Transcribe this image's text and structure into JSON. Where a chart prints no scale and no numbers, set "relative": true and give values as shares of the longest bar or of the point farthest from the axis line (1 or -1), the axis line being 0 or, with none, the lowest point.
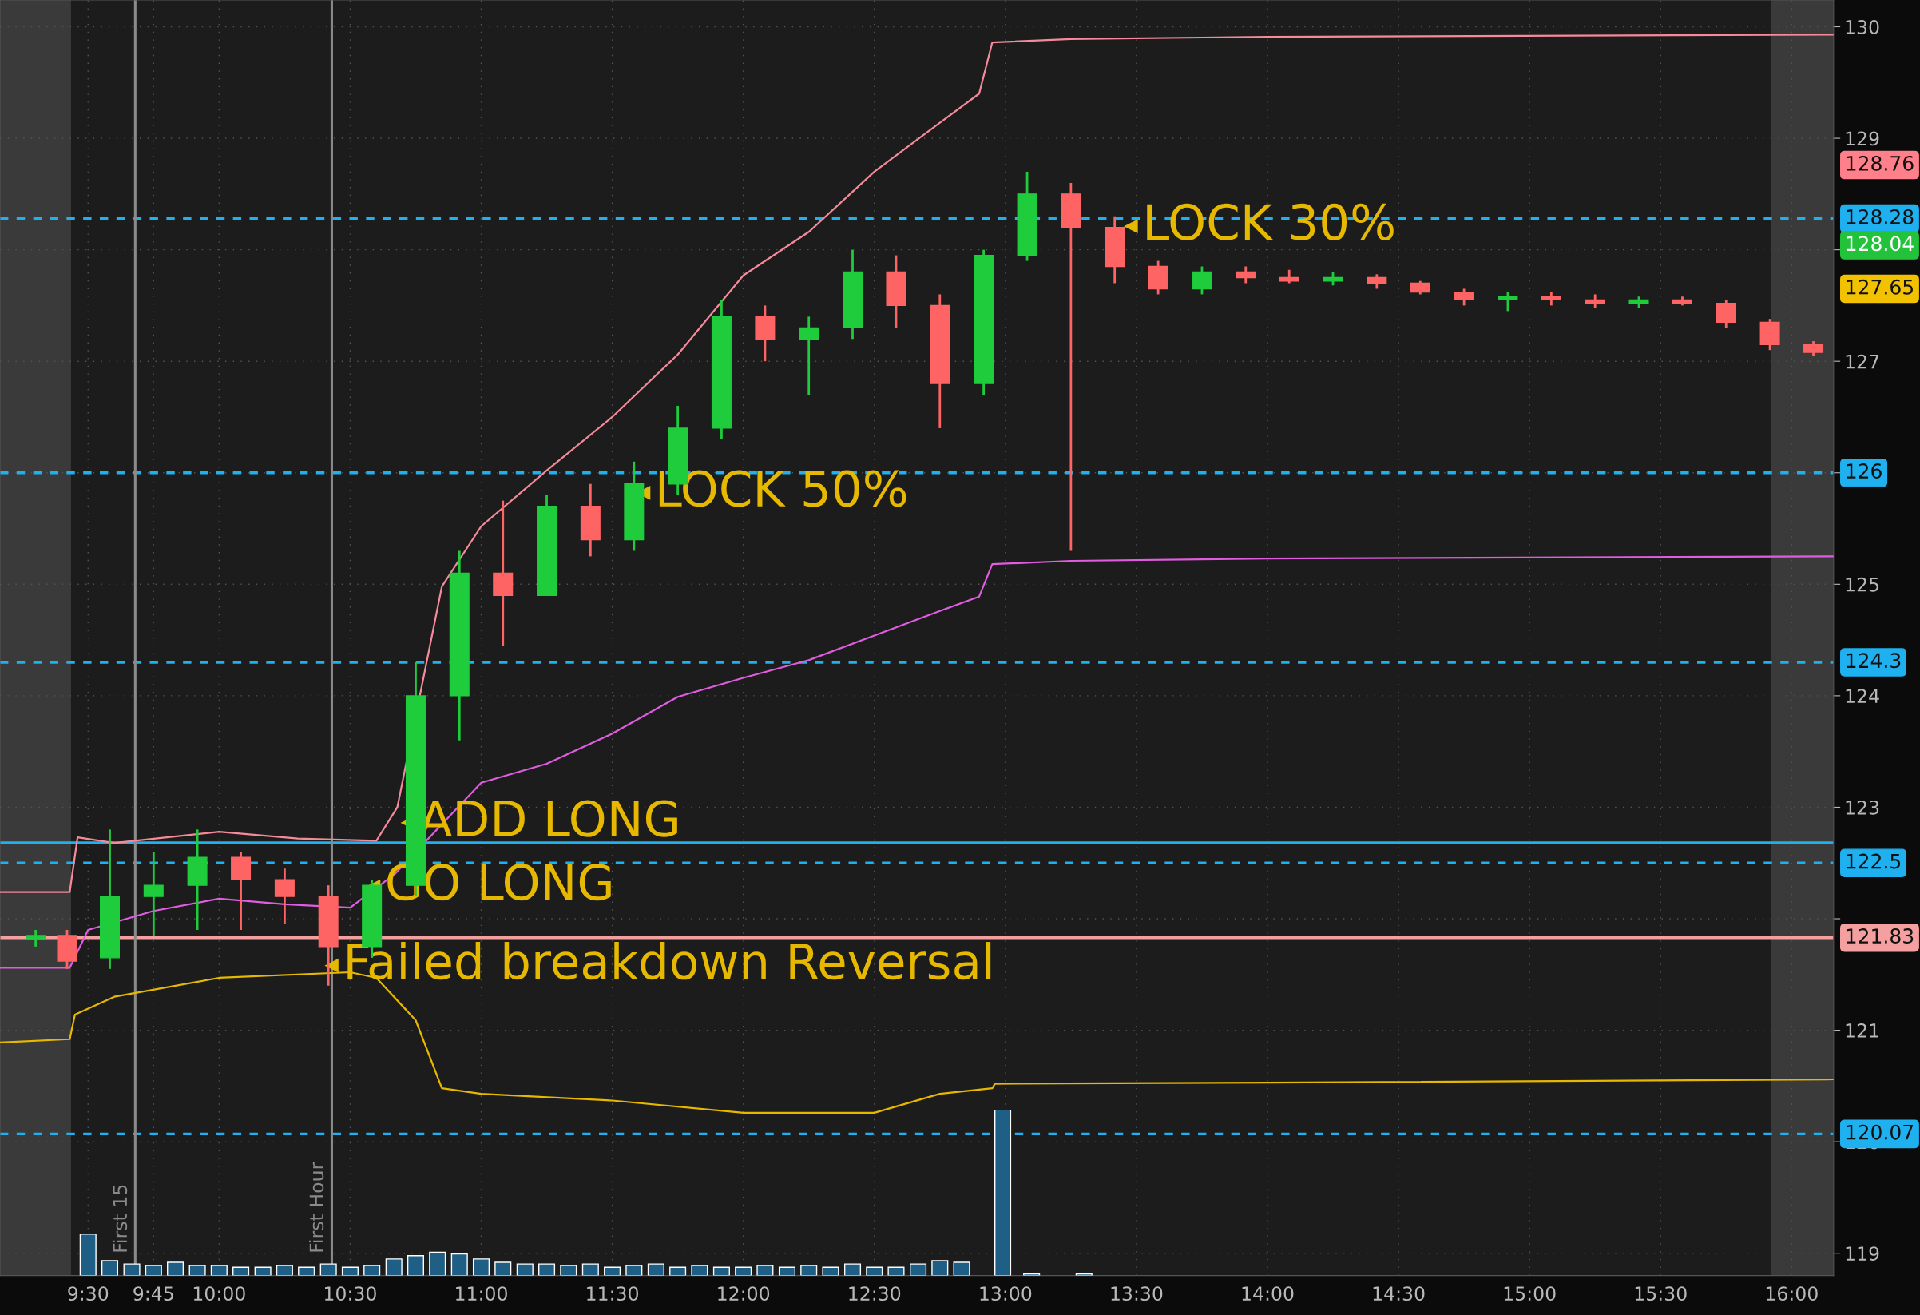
{
  "chart_data": [
    {
      "type": "candlestick",
      "x": [
        9.3,
        9.42,
        9.583,
        9.75,
        9.917,
        10.083,
        10.25,
        10.417,
        10.583,
        10.75,
        10.917,
        11.083,
        11.25,
        11.417,
        11.583,
        11.75,
        11.917,
        12.083,
        12.25,
        12.417,
        12.583,
        12.75,
        12.917,
        13.083,
        13.25,
        13.417,
        13.583,
        13.75,
        13.917,
        14.083,
        14.25,
        14.417,
        14.583,
        14.75,
        14.917,
        15.083,
        15.25,
        15.417,
        15.583,
        15.75,
        15.917,
        16.083
      ],
      "ohlc": [
        [
          121.82,
          121.9,
          121.75,
          121.85
        ],
        [
          121.85,
          121.9,
          121.55,
          121.62
        ],
        [
          121.65,
          122.8,
          121.55,
          122.2
        ],
        [
          122.2,
          122.6,
          121.85,
          122.3
        ],
        [
          122.3,
          122.8,
          121.9,
          122.55
        ],
        [
          122.55,
          122.6,
          121.9,
          122.35
        ],
        [
          122.35,
          122.45,
          121.95,
          122.2
        ],
        [
          122.2,
          122.3,
          121.4,
          121.75
        ],
        [
          121.75,
          122.35,
          121.65,
          122.3
        ],
        [
          122.3,
          124.3,
          122.2,
          124.0
        ],
        [
          124.0,
          125.3,
          123.6,
          125.1
        ],
        [
          125.1,
          125.75,
          124.45,
          124.9
        ],
        [
          124.9,
          125.8,
          124.9,
          125.7
        ],
        [
          125.7,
          125.9,
          125.25,
          125.4
        ],
        [
          125.4,
          126.1,
          125.3,
          125.9
        ],
        [
          125.9,
          126.6,
          125.8,
          126.4
        ],
        [
          126.4,
          127.55,
          126.3,
          127.4
        ],
        [
          127.4,
          127.5,
          127.0,
          127.2
        ],
        [
          127.2,
          127.4,
          126.7,
          127.3
        ],
        [
          127.3,
          128.0,
          127.2,
          127.8
        ],
        [
          127.8,
          127.95,
          127.3,
          127.5
        ],
        [
          127.5,
          127.6,
          126.4,
          126.8
        ],
        [
          126.8,
          128.0,
          126.7,
          127.95
        ],
        [
          127.95,
          128.7,
          127.9,
          128.5
        ],
        [
          128.5,
          128.6,
          125.3,
          128.2
        ],
        [
          128.2,
          128.3,
          127.7,
          127.85
        ],
        [
          127.85,
          127.9,
          127.6,
          127.65
        ],
        [
          127.65,
          127.85,
          127.6,
          127.8
        ],
        [
          127.8,
          127.85,
          127.7,
          127.75
        ],
        [
          127.75,
          127.82,
          127.7,
          127.72
        ],
        [
          127.72,
          127.8,
          127.68,
          127.75
        ],
        [
          127.75,
          127.78,
          127.65,
          127.7
        ],
        [
          127.7,
          127.72,
          127.6,
          127.62
        ],
        [
          127.62,
          127.65,
          127.5,
          127.55
        ],
        [
          127.55,
          127.62,
          127.45,
          127.58
        ],
        [
          127.58,
          127.62,
          127.5,
          127.55
        ],
        [
          127.55,
          127.6,
          127.48,
          127.52
        ],
        [
          127.52,
          127.58,
          127.48,
          127.55
        ],
        [
          127.55,
          127.58,
          127.5,
          127.52
        ],
        [
          127.52,
          127.55,
          127.3,
          127.35
        ],
        [
          127.35,
          127.38,
          127.1,
          127.15
        ],
        [
          127.15,
          127.18,
          127.05,
          127.08
        ]
      ],
      "series": [
        {
          "type": "line",
          "color": "#f48a9a",
          "x": [
            9.164,
            9.43,
            9.46,
            9.6,
            10.0,
            10.3,
            10.6,
            10.68,
            10.85,
            11.0,
            11.25,
            11.5,
            11.75,
            12.0,
            12.25,
            12.5,
            12.75,
            12.9,
            12.95,
            13.25,
            14.0,
            16.16
          ],
          "values": [
            122.24,
            122.24,
            122.73,
            122.68,
            122.78,
            122.72,
            122.7,
            123.0,
            124.98,
            125.52,
            126.02,
            126.5,
            127.06,
            127.77,
            128.16,
            128.7,
            129.14,
            129.4,
            129.86,
            129.89,
            129.91,
            129.93
          ]
        },
        {
          "type": "line",
          "color": "#e05ce0",
          "x": [
            9.164,
            9.43,
            9.5,
            9.75,
            10.0,
            10.25,
            10.5,
            10.67,
            11.0,
            11.25,
            11.5,
            11.75,
            12.0,
            12.25,
            12.5,
            12.75,
            12.9,
            12.95,
            13.25,
            14.0,
            16.16
          ],
          "values": [
            121.56,
            121.56,
            121.9,
            122.07,
            122.18,
            122.13,
            122.1,
            122.4,
            123.22,
            123.39,
            123.66,
            123.99,
            124.16,
            124.32,
            124.54,
            124.76,
            124.89,
            125.18,
            125.21,
            125.23,
            125.25
          ]
        },
        {
          "type": "line",
          "color": "#e6b800",
          "x": [
            9.164,
            9.43,
            9.45,
            9.6,
            10.0,
            10.5,
            10.6,
            10.75,
            10.85,
            11.0,
            11.5,
            12.0,
            12.5,
            12.75,
            12.95,
            12.96,
            14.0,
            16.16
          ],
          "values": [
            120.89,
            120.92,
            121.14,
            121.3,
            121.47,
            121.52,
            121.47,
            121.09,
            120.48,
            120.43,
            120.37,
            120.26,
            120.26,
            120.43,
            120.48,
            120.52,
            120.53,
            120.56
          ]
        }
      ],
      "ref_lines": [
        {
          "axis": "y",
          "value": 128.28,
          "label": "128.28",
          "color": "#1fb0f0",
          "line_style": "dashed"
        },
        {
          "axis": "y",
          "value": 126,
          "label": "126",
          "color": "#1fb0f0",
          "line_style": "dashed"
        },
        {
          "axis": "y",
          "value": 124.3,
          "label": "124.3",
          "color": "#1fb0f0",
          "line_style": "dashed"
        },
        {
          "axis": "y",
          "value": 122.5,
          "label": "122.5",
          "color": "#1fb0f0",
          "line_style": "dashed"
        },
        {
          "axis": "y",
          "value": 120.07,
          "label": "120.07",
          "color": "#1fb0f0",
          "line_style": "dashed"
        },
        {
          "axis": "y",
          "value": 122.68,
          "label": null,
          "color": "#1fb0f0",
          "line_style": "solid"
        },
        {
          "axis": "y",
          "value": 121.83,
          "label": "121.83",
          "color": "#f4a0a0",
          "line_style": "solid"
        },
        {
          "axis": "x",
          "value": 9.68,
          "label": "First 15",
          "color": "#8a8a8a",
          "line_style": "solid"
        },
        {
          "axis": "x",
          "value": 10.43,
          "label": "First Hour",
          "color": "#8a8a8a",
          "line_style": "solid"
        }
      ],
      "bands": [
        {
          "axis": "x",
          "from": 9.164,
          "to": 9.435,
          "label": null,
          "color": "#3a3a3a"
        },
        {
          "axis": "x",
          "from": 15.92,
          "to": 16.16,
          "label": null,
          "color": "#3a3a3a"
        }
      ],
      "annotations": [
        {
          "text": "LOCK 30%",
          "x": 13.48,
          "y": 128.21
        },
        {
          "text": "LOCK 50%",
          "x": 11.62,
          "y": 125.82
        },
        {
          "text": "ADD LONG",
          "x": 10.72,
          "y": 122.86
        },
        {
          "text": "GO LONG",
          "x": 10.59,
          "y": 122.29
        },
        {
          "text": "Failed breakdown Reversal",
          "x": 10.43,
          "y": 121.58
        },
        {
          "text": "128.76",
          "x": 16.16,
          "y": 128.76
        },
        {
          "text": "128.04",
          "x": 16.16,
          "y": 128.04
        },
        {
          "text": "127.65",
          "x": 16.16,
          "y": 127.65
        }
      ],
      "xlim": [
        9.164,
        16.16
      ],
      "xticks": [
        {
          "value": 9.5,
          "label": "9:30"
        },
        {
          "value": 9.75,
          "label": "9:45"
        },
        {
          "value": 10.0,
          "label": "10:00"
        },
        {
          "value": 10.5,
          "label": "10:30"
        },
        {
          "value": 11.0,
          "label": "11:00"
        },
        {
          "value": 11.5,
          "label": "11:30"
        },
        {
          "value": 12.0,
          "label": "12:00"
        },
        {
          "value": 12.5,
          "label": "12:30"
        },
        {
          "value": 13.0,
          "label": "13:00"
        },
        {
          "value": 13.5,
          "label": "13:30"
        },
        {
          "value": 14.0,
          "label": "14:00"
        },
        {
          "value": 14.5,
          "label": "14:30"
        },
        {
          "value": 15.0,
          "label": "15:00"
        },
        {
          "value": 15.5,
          "label": "15:30"
        },
        {
          "value": 16.0,
          "label": "16:00"
        }
      ],
      "ylim": [
        118.8,
        130.24
      ],
      "yticks": [
        119,
        120,
        121,
        {
          "value": 122,
          "label": null
        },
        123,
        124,
        125,
        126,
        127,
        {
          "value": 128,
          "label": null
        },
        129,
        130
      ],
      "grid": true,
      "legend": false
    },
    {
      "type": "bar",
      "relative": true,
      "color": "#1f5f86",
      "xlim": [
        9.164,
        16.16
      ],
      "x": [
        9.5,
        9.583,
        9.667,
        9.75,
        9.833,
        9.917,
        10.0,
        10.083,
        10.167,
        10.25,
        10.333,
        10.417,
        10.5,
        10.583,
        10.667,
        10.75,
        10.833,
        10.917,
        11.0,
        11.083,
        11.167,
        11.25,
        11.333,
        11.417,
        11.5,
        11.583,
        11.667,
        11.75,
        11.833,
        11.917,
        12.0,
        12.083,
        12.167,
        12.25,
        12.333,
        12.417,
        12.5,
        12.583,
        12.667,
        12.75,
        12.833,
        12.99,
        13.1,
        13.3
      ],
      "values": [
        0.25,
        0.09,
        0.07,
        0.06,
        0.08,
        0.06,
        0.06,
        0.05,
        0.05,
        0.06,
        0.05,
        0.07,
        0.05,
        0.06,
        0.1,
        0.12,
        0.14,
        0.13,
        0.1,
        0.08,
        0.07,
        0.07,
        0.06,
        0.07,
        0.05,
        0.06,
        0.07,
        0.05,
        0.06,
        0.05,
        0.05,
        0.06,
        0.05,
        0.06,
        0.05,
        0.07,
        0.05,
        0.05,
        0.07,
        0.09,
        0.08,
        1.0,
        0.01,
        0.01
      ]
    }
  ]
}
